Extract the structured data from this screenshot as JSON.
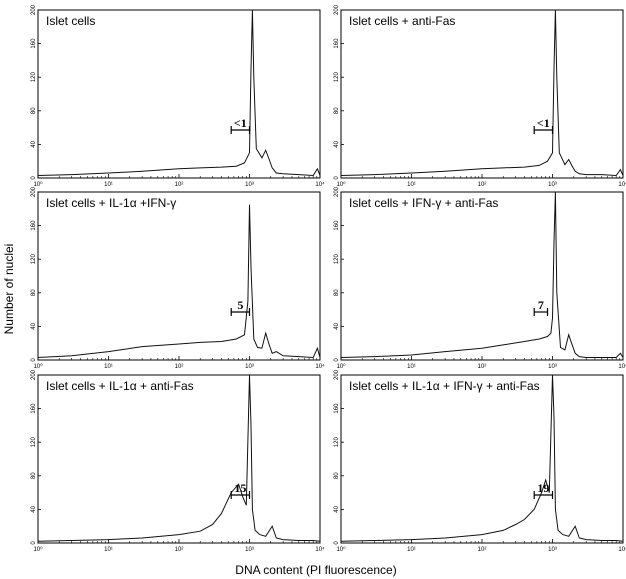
{
  "figure": {
    "xlabel": "DNA content (PI fluorescence)",
    "ylabel": "Number of nuclei"
  },
  "chart_data": [
    {
      "type": "line",
      "title": "Islet cells",
      "x_scale": "log",
      "xlim": [
        1,
        10000
      ],
      "ylim": [
        0,
        200
      ],
      "x_ticks": [
        "10⁰",
        "10¹",
        "10²",
        "10³",
        "10⁴"
      ],
      "y_ticks": [
        "0",
        "40",
        "80",
        "120",
        "160",
        "200"
      ],
      "gate": {
        "label": "<1",
        "x_range": [
          550,
          1000
        ]
      },
      "series": [
        {
          "x": [
            1,
            3,
            10,
            30,
            100,
            200,
            400,
            650,
            850,
            1000,
            1050,
            1100,
            1150,
            1250,
            1500,
            1700,
            1900,
            2100,
            2400,
            3000,
            5000,
            8000,
            9200,
            10000
          ],
          "y": [
            3,
            4,
            6,
            8,
            11,
            12,
            13,
            14,
            18,
            30,
            130,
            200,
            120,
            35,
            24,
            33,
            22,
            12,
            6,
            5,
            4,
            3,
            11,
            3
          ]
        }
      ]
    },
    {
      "type": "line",
      "title": "Islet cells + anti-Fas",
      "x_scale": "log",
      "xlim": [
        1,
        10000
      ],
      "ylim": [
        0,
        200
      ],
      "x_ticks": [
        "10⁰",
        "10¹",
        "10²",
        "10³",
        "10⁴"
      ],
      "y_ticks": [
        "0",
        "40",
        "80",
        "120",
        "160",
        "200"
      ],
      "gate": {
        "label": "<1",
        "x_range": [
          550,
          1000
        ]
      },
      "series": [
        {
          "x": [
            1,
            3,
            10,
            30,
            100,
            200,
            400,
            650,
            850,
            1000,
            1050,
            1100,
            1150,
            1250,
            1500,
            1700,
            1900,
            2100,
            2400,
            3000,
            5000,
            8000,
            9200,
            10000
          ],
          "y": [
            3,
            4,
            6,
            8,
            11,
            12,
            13,
            15,
            20,
            30,
            130,
            200,
            120,
            30,
            16,
            22,
            14,
            8,
            5,
            4,
            4,
            3,
            10,
            3
          ]
        }
      ]
    },
    {
      "type": "line",
      "title": "Islet cells + IL-1α +IFN-γ",
      "x_scale": "log",
      "xlim": [
        1,
        10000
      ],
      "ylim": [
        0,
        200
      ],
      "x_ticks": [
        "10⁰",
        "10¹",
        "10²",
        "10³",
        "10⁴"
      ],
      "y_ticks": [
        "0",
        "40",
        "80",
        "120",
        "160",
        "200"
      ],
      "gate": {
        "label": "5",
        "x_range": [
          550,
          1000
        ]
      },
      "series": [
        {
          "x": [
            1,
            3,
            10,
            30,
            100,
            200,
            400,
            650,
            850,
            950,
            1000,
            1050,
            1150,
            1300,
            1500,
            1700,
            1900,
            2100,
            2400,
            3000,
            5000,
            8000,
            9200,
            10000
          ],
          "y": [
            3,
            5,
            10,
            16,
            19,
            21,
            22,
            25,
            30,
            70,
            185,
            110,
            25,
            15,
            14,
            32,
            18,
            8,
            10,
            5,
            4,
            3,
            14,
            3
          ]
        }
      ]
    },
    {
      "type": "line",
      "title": "Islet cells + IFN-γ + anti-Fas",
      "x_scale": "log",
      "xlim": [
        1,
        10000
      ],
      "ylim": [
        0,
        200
      ],
      "x_ticks": [
        "10⁰",
        "10¹",
        "10²",
        "10³",
        "10⁴"
      ],
      "y_ticks": [
        "0",
        "40",
        "80",
        "120",
        "160",
        "200"
      ],
      "gate": {
        "label": "7",
        "x_range": [
          550,
          850
        ]
      },
      "series": [
        {
          "x": [
            1,
            3,
            10,
            30,
            100,
            200,
            400,
            650,
            850,
            950,
            1000,
            1050,
            1100,
            1150,
            1300,
            1500,
            1700,
            1900,
            2100,
            2400,
            3000,
            5000,
            8000,
            9200,
            10000
          ],
          "y": [
            3,
            4,
            6,
            10,
            14,
            18,
            22,
            25,
            28,
            32,
            50,
            140,
            200,
            80,
            15,
            12,
            30,
            18,
            8,
            4,
            3,
            3,
            3,
            8,
            3
          ]
        }
      ]
    },
    {
      "type": "line",
      "title": "Islet cells + IL-1α + anti-Fas",
      "x_scale": "log",
      "xlim": [
        1,
        10000
      ],
      "ylim": [
        0,
        200
      ],
      "x_ticks": [
        "10⁰",
        "10¹",
        "10²",
        "10³",
        "10⁴"
      ],
      "y_ticks": [
        "0",
        "40",
        "80",
        "120",
        "160",
        "200"
      ],
      "gate": {
        "label": "15",
        "x_range": [
          550,
          1000
        ]
      },
      "series": [
        {
          "x": [
            1,
            3,
            10,
            30,
            100,
            200,
            300,
            400,
            550,
            700,
            800,
            900,
            1000,
            1050,
            1100,
            1200,
            1400,
            1700,
            2100,
            2400,
            3000,
            5000,
            8000,
            10000
          ],
          "y": [
            2,
            3,
            4,
            6,
            10,
            14,
            22,
            35,
            60,
            70,
            55,
            45,
            200,
            140,
            40,
            15,
            10,
            8,
            20,
            6,
            4,
            3,
            3,
            2
          ]
        }
      ]
    },
    {
      "type": "line",
      "title": "Islet cells + IL-1α + IFN-γ + anti-Fas",
      "x_scale": "log",
      "xlim": [
        1,
        10000
      ],
      "ylim": [
        0,
        200
      ],
      "x_ticks": [
        "10⁰",
        "10¹",
        "10²",
        "10³",
        "10⁴"
      ],
      "y_ticks": [
        "0",
        "40",
        "80",
        "120",
        "160",
        "200"
      ],
      "gate": {
        "label": "19",
        "x_range": [
          550,
          1000
        ]
      },
      "series": [
        {
          "x": [
            1,
            3,
            10,
            30,
            100,
            200,
            300,
            400,
            550,
            700,
            800,
            900,
            1000,
            1050,
            1100,
            1200,
            1400,
            1700,
            2100,
            2400,
            3000,
            5000,
            8000,
            10000
          ],
          "y": [
            2,
            3,
            4,
            6,
            10,
            15,
            22,
            28,
            40,
            60,
            75,
            60,
            200,
            150,
            40,
            15,
            10,
            8,
            20,
            6,
            4,
            3,
            3,
            2
          ]
        }
      ]
    }
  ]
}
